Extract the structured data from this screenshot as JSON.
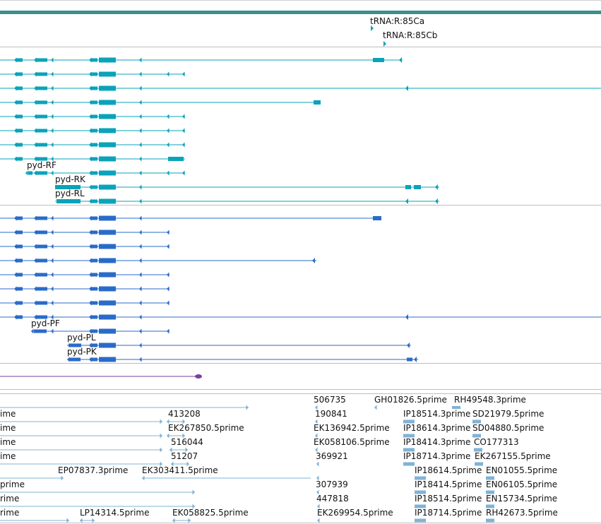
{
  "colors": {
    "top_bar": "#3a8e8e",
    "rna": "#0aa3b9",
    "protein": "#2a6bc9",
    "ncrna": "#7b3fa2",
    "est": "#7fb3d6",
    "separator": "#bdbdbd"
  },
  "trna_labels": [
    "tRNA:R:85Ca",
    "tRNA:R:85Cb"
  ],
  "rna_labels": [
    "pyd-RF",
    "pyd-RK",
    "pyd-RL"
  ],
  "protein_labels": [
    "pyd-PF",
    "pyd-PL",
    "pyd-PK"
  ],
  "est_labels": [
    "506735",
    "GH01826.5prime",
    "RH49548.3prime",
    "ime",
    "413208",
    "190841",
    "IP18514.3prime",
    "SD21979.5prime",
    "ime",
    "EK267850.5prime",
    "EK136942.5prime",
    "IP18614.3prime",
    "SD04880.5prime",
    "ime",
    "516044",
    "EK058106.5prime",
    "IP18414.3prime",
    "CO177313",
    "ime",
    "51207",
    "369921",
    "IP18714.3prime",
    "EK267155.5prime",
    "EP07837.3prime",
    "EK303411.5prime",
    "IP18614.5prime",
    "EN01055.5prime",
    "prime",
    "307939",
    "IP18414.5prime",
    "EN06105.5prime",
    "rime",
    "447818",
    "IP18514.5prime",
    "EN15734.5prime",
    "rime",
    "LP14314.5prime",
    "EK058825.5prime",
    "EK269954.5prime",
    "IP18714.5prime",
    "RH42673.5prime"
  ]
}
